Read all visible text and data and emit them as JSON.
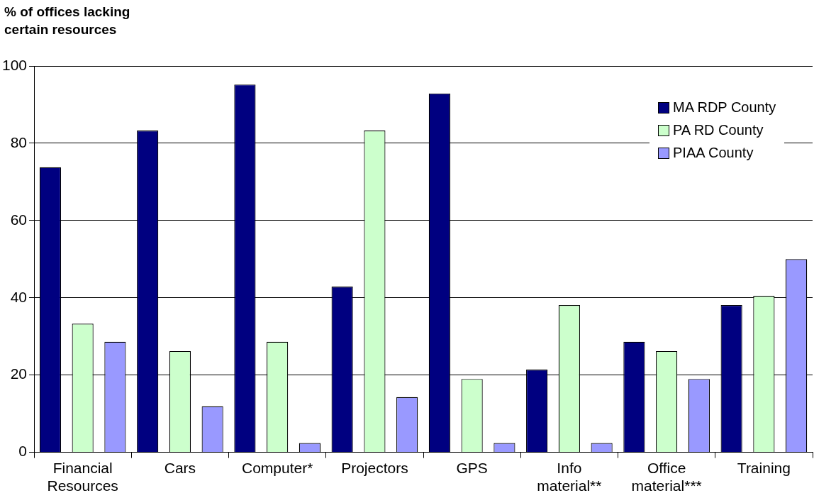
{
  "chart_data": {
    "type": "bar",
    "ylabel": "% of offices lacking\ncertain resources",
    "categories": [
      "Financial Resources",
      "Cars",
      "Computer*",
      "Projectors",
      "GPS",
      "Info material**",
      "Office material***",
      "Training"
    ],
    "series": [
      {
        "name": "MA RDP County",
        "color": "#000080",
        "values": [
          73.8,
          83.3,
          95.2,
          42.9,
          92.9,
          21.4,
          28.6,
          38.1
        ]
      },
      {
        "name": "PA RD County",
        "color": "#ccffcc",
        "values": [
          33.3,
          26.2,
          28.6,
          83.3,
          19.0,
          38.1,
          26.2,
          40.5
        ]
      },
      {
        "name": "PIAA County",
        "color": "#9999ff",
        "values": [
          28.6,
          11.9,
          2.4,
          14.3,
          2.4,
          2.4,
          19.0,
          50.0
        ]
      }
    ],
    "ylim": [
      0,
      100
    ],
    "yticks": [
      0,
      20,
      40,
      60,
      80,
      100
    ],
    "grid": "y",
    "legend": "top right"
  }
}
